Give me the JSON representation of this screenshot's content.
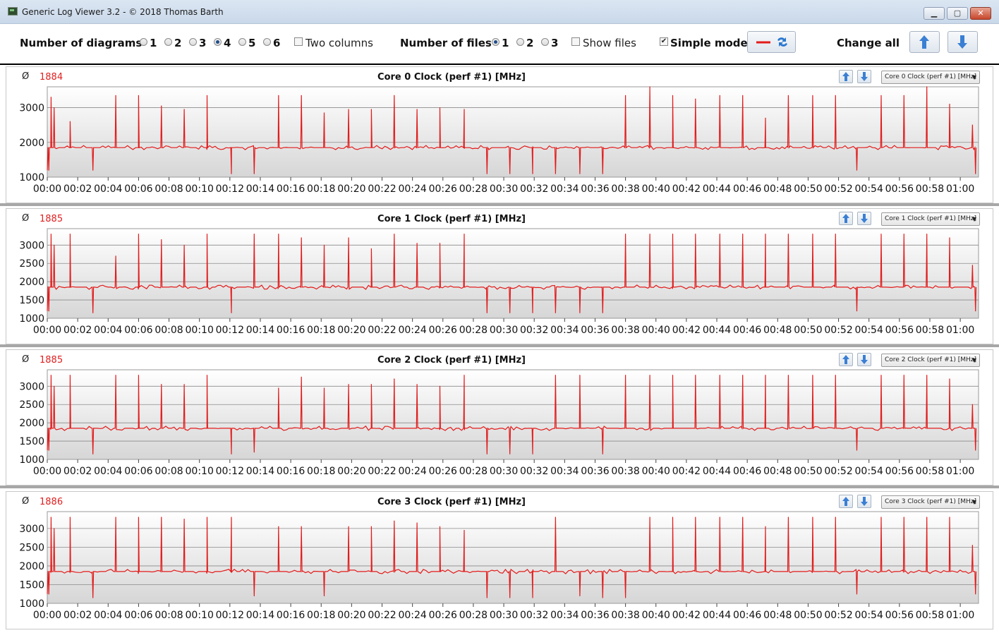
{
  "window": {
    "title": "Generic Log Viewer 3.2 - © 2018 Thomas Barth",
    "minimize_icon": "minimize-icon",
    "maximize_icon": "maximize-icon",
    "close_icon": "close-icon"
  },
  "toolbar": {
    "diagrams_label": "Number of diagrams",
    "diagram_options": [
      "1",
      "2",
      "3",
      "4",
      "5",
      "6"
    ],
    "diagram_selected": "4",
    "two_columns_label": "Two columns",
    "two_columns_checked": false,
    "files_label": "Number of files",
    "file_options": [
      "1",
      "2",
      "3"
    ],
    "file_selected": "1",
    "show_files_label": "Show files",
    "show_files_checked": false,
    "simple_mode_label": "Simple mode",
    "simple_mode_checked": true,
    "change_all_label": "Change all",
    "accent_color": "#e31b1b",
    "arrow_color": "#3b7fd4"
  },
  "panels": [
    {
      "avg_symbol": "Ø",
      "avg": "1884",
      "title": "Core 0 Clock (perf #1) [MHz]",
      "select": "Core 0 Clock (perf #1) [MHz]"
    },
    {
      "avg_symbol": "Ø",
      "avg": "1885",
      "title": "Core 1 Clock (perf #1) [MHz]",
      "select": "Core 1 Clock (perf #1) [MHz]"
    },
    {
      "avg_symbol": "Ø",
      "avg": "1885",
      "title": "Core 2 Clock (perf #1) [MHz]",
      "select": "Core 2 Clock (perf #1) [MHz]"
    },
    {
      "avg_symbol": "Ø",
      "avg": "1886",
      "title": "Core 3 Clock (perf #1) [MHz]",
      "select": "Core 3 Clock (perf #1) [MHz]"
    }
  ],
  "chart_data": [
    {
      "type": "line",
      "title": "Core 0 Clock (perf #1) [MHz]",
      "x_ticks": [
        "00:00",
        "00:02",
        "00:04",
        "00:06",
        "00:08",
        "00:10",
        "00:12",
        "00:14",
        "00:16",
        "00:18",
        "00:20",
        "00:22",
        "00:24",
        "00:26",
        "00:28",
        "00:30",
        "00:32",
        "00:34",
        "00:36",
        "00:38",
        "00:40",
        "00:42",
        "00:44",
        "00:46",
        "00:48",
        "00:50",
        "00:52",
        "00:54",
        "00:56",
        "00:58",
        "01:00"
      ],
      "y_ticks": [
        1000,
        2000,
        3000
      ],
      "ylim": [
        1000,
        3600
      ],
      "xlim": [
        0,
        61.2
      ],
      "line_color": "#e31b1b",
      "grid": true,
      "baseline": 1850,
      "spikes": [
        [
          0.1,
          1200
        ],
        [
          0.25,
          3300
        ],
        [
          0.45,
          3000
        ],
        [
          1.5,
          2600
        ],
        [
          3.0,
          1200
        ],
        [
          4.5,
          3350
        ],
        [
          6.0,
          3350
        ],
        [
          7.5,
          3050
        ],
        [
          9.0,
          2950
        ],
        [
          10.5,
          3350
        ],
        [
          12.1,
          1100
        ],
        [
          13.6,
          1100
        ],
        [
          15.2,
          3350
        ],
        [
          16.7,
          3350
        ],
        [
          18.2,
          2850
        ],
        [
          19.8,
          2950
        ],
        [
          21.3,
          2950
        ],
        [
          22.8,
          3350
        ],
        [
          24.3,
          2950
        ],
        [
          25.8,
          3000
        ],
        [
          27.4,
          2950
        ],
        [
          28.9,
          1100
        ],
        [
          30.4,
          1100
        ],
        [
          31.9,
          1100
        ],
        [
          33.4,
          1100
        ],
        [
          35.0,
          1100
        ],
        [
          36.5,
          1100
        ],
        [
          38.0,
          3350
        ],
        [
          39.6,
          3650
        ],
        [
          41.1,
          3350
        ],
        [
          42.6,
          3250
        ],
        [
          44.2,
          3350
        ],
        [
          45.7,
          3350
        ],
        [
          47.2,
          2700
        ],
        [
          48.7,
          3350
        ],
        [
          50.3,
          3350
        ],
        [
          51.8,
          3350
        ],
        [
          53.2,
          1200
        ],
        [
          54.8,
          3350
        ],
        [
          56.3,
          3350
        ],
        [
          57.8,
          3650
        ],
        [
          59.3,
          3100
        ],
        [
          60.8,
          2500
        ],
        [
          61.0,
          1100
        ]
      ]
    },
    {
      "type": "line",
      "title": "Core 1 Clock (perf #1) [MHz]",
      "x_ticks": [
        "00:00",
        "00:02",
        "00:04",
        "00:06",
        "00:08",
        "00:10",
        "00:12",
        "00:14",
        "00:16",
        "00:18",
        "00:20",
        "00:22",
        "00:24",
        "00:26",
        "00:28",
        "00:30",
        "00:32",
        "00:34",
        "00:36",
        "00:38",
        "00:40",
        "00:42",
        "00:44",
        "00:46",
        "00:48",
        "00:50",
        "00:52",
        "00:54",
        "00:56",
        "00:58",
        "01:00"
      ],
      "y_ticks": [
        1000,
        1500,
        2000,
        2500,
        3000
      ],
      "ylim": [
        1000,
        3450
      ],
      "xlim": [
        0,
        61.2
      ],
      "line_color": "#e31b1b",
      "grid": true,
      "baseline": 1850,
      "spikes": [
        [
          0.1,
          1200
        ],
        [
          0.25,
          3300
        ],
        [
          0.45,
          3000
        ],
        [
          1.5,
          3300
        ],
        [
          3.0,
          1150
        ],
        [
          4.5,
          2700
        ],
        [
          6.0,
          3300
        ],
        [
          7.5,
          3150
        ],
        [
          9.0,
          3000
        ],
        [
          10.5,
          3300
        ],
        [
          12.1,
          1150
        ],
        [
          13.6,
          3300
        ],
        [
          15.2,
          3300
        ],
        [
          16.7,
          3200
        ],
        [
          18.2,
          3000
        ],
        [
          19.8,
          3200
        ],
        [
          21.3,
          2900
        ],
        [
          22.8,
          3300
        ],
        [
          24.3,
          3050
        ],
        [
          25.8,
          3050
        ],
        [
          27.4,
          3300
        ],
        [
          28.9,
          1150
        ],
        [
          30.4,
          1150
        ],
        [
          31.9,
          1150
        ],
        [
          33.4,
          1150
        ],
        [
          35.0,
          1150
        ],
        [
          36.5,
          1150
        ],
        [
          38.0,
          3300
        ],
        [
          39.6,
          3300
        ],
        [
          41.1,
          3300
        ],
        [
          42.6,
          3300
        ],
        [
          44.2,
          3300
        ],
        [
          45.7,
          3300
        ],
        [
          47.2,
          3300
        ],
        [
          48.7,
          3300
        ],
        [
          50.3,
          3300
        ],
        [
          51.8,
          3300
        ],
        [
          53.2,
          1200
        ],
        [
          54.8,
          3300
        ],
        [
          56.3,
          3300
        ],
        [
          57.8,
          3300
        ],
        [
          59.3,
          3200
        ],
        [
          60.8,
          2450
        ],
        [
          61.0,
          1200
        ]
      ]
    },
    {
      "type": "line",
      "title": "Core 2 Clock (perf #1) [MHz]",
      "x_ticks": [
        "00:00",
        "00:02",
        "00:04",
        "00:06",
        "00:08",
        "00:10",
        "00:12",
        "00:14",
        "00:16",
        "00:18",
        "00:20",
        "00:22",
        "00:24",
        "00:26",
        "00:28",
        "00:30",
        "00:32",
        "00:34",
        "00:36",
        "00:38",
        "00:40",
        "00:42",
        "00:44",
        "00:46",
        "00:48",
        "00:50",
        "00:52",
        "00:54",
        "00:56",
        "00:58",
        "01:00"
      ],
      "y_ticks": [
        1000,
        1500,
        2000,
        2500,
        3000
      ],
      "ylim": [
        1000,
        3450
      ],
      "xlim": [
        0,
        61.2
      ],
      "line_color": "#e31b1b",
      "grid": true,
      "baseline": 1850,
      "spikes": [
        [
          0.1,
          1250
        ],
        [
          0.25,
          3300
        ],
        [
          0.45,
          3000
        ],
        [
          1.5,
          3300
        ],
        [
          3.0,
          1150
        ],
        [
          4.5,
          3300
        ],
        [
          6.0,
          3300
        ],
        [
          7.5,
          3050
        ],
        [
          9.0,
          3050
        ],
        [
          10.5,
          3300
        ],
        [
          12.1,
          1150
        ],
        [
          13.6,
          1200
        ],
        [
          15.2,
          2950
        ],
        [
          16.7,
          3250
        ],
        [
          18.2,
          2950
        ],
        [
          19.8,
          3050
        ],
        [
          21.3,
          3050
        ],
        [
          22.8,
          3200
        ],
        [
          24.3,
          3050
        ],
        [
          25.8,
          3000
        ],
        [
          27.4,
          3300
        ],
        [
          28.9,
          1150
        ],
        [
          30.4,
          1150
        ],
        [
          31.9,
          1150
        ],
        [
          33.4,
          3300
        ],
        [
          35.0,
          3300
        ],
        [
          36.5,
          1150
        ],
        [
          38.0,
          3300
        ],
        [
          39.6,
          3300
        ],
        [
          41.1,
          3300
        ],
        [
          42.6,
          3300
        ],
        [
          44.2,
          3300
        ],
        [
          45.7,
          3300
        ],
        [
          47.2,
          3300
        ],
        [
          48.7,
          3300
        ],
        [
          50.3,
          3300
        ],
        [
          51.8,
          3300
        ],
        [
          53.2,
          1250
        ],
        [
          54.8,
          3300
        ],
        [
          56.3,
          3300
        ],
        [
          57.8,
          3300
        ],
        [
          59.3,
          3200
        ],
        [
          60.8,
          2500
        ],
        [
          61.0,
          1250
        ]
      ]
    },
    {
      "type": "line",
      "title": "Core 3 Clock (perf #1) [MHz]",
      "x_ticks": [
        "00:00",
        "00:02",
        "00:04",
        "00:06",
        "00:08",
        "00:10",
        "00:12",
        "00:14",
        "00:16",
        "00:18",
        "00:20",
        "00:22",
        "00:24",
        "00:26",
        "00:28",
        "00:30",
        "00:32",
        "00:34",
        "00:36",
        "00:38",
        "00:40",
        "00:42",
        "00:44",
        "00:46",
        "00:48",
        "00:50",
        "00:52",
        "00:54",
        "00:56",
        "00:58",
        "01:00"
      ],
      "y_ticks": [
        1000,
        1500,
        2000,
        2500,
        3000
      ],
      "ylim": [
        1000,
        3450
      ],
      "xlim": [
        0,
        61.2
      ],
      "line_color": "#e31b1b",
      "grid": true,
      "baseline": 1850,
      "spikes": [
        [
          0.1,
          1250
        ],
        [
          0.25,
          3300
        ],
        [
          0.45,
          3000
        ],
        [
          1.5,
          3300
        ],
        [
          3.0,
          1150
        ],
        [
          4.5,
          3300
        ],
        [
          6.0,
          3300
        ],
        [
          7.5,
          3300
        ],
        [
          9.0,
          3250
        ],
        [
          10.5,
          3300
        ],
        [
          12.1,
          3300
        ],
        [
          13.6,
          1200
        ],
        [
          15.2,
          3050
        ],
        [
          16.7,
          3050
        ],
        [
          18.2,
          1200
        ],
        [
          19.8,
          3050
        ],
        [
          21.3,
          3050
        ],
        [
          22.8,
          3200
        ],
        [
          24.3,
          3150
        ],
        [
          25.8,
          3050
        ],
        [
          27.4,
          2950
        ],
        [
          28.9,
          1150
        ],
        [
          30.4,
          1150
        ],
        [
          31.9,
          1150
        ],
        [
          33.4,
          3300
        ],
        [
          35.0,
          1200
        ],
        [
          36.5,
          1150
        ],
        [
          38.0,
          1150
        ],
        [
          39.6,
          3300
        ],
        [
          41.1,
          3300
        ],
        [
          42.6,
          3300
        ],
        [
          44.2,
          3300
        ],
        [
          45.7,
          3300
        ],
        [
          47.2,
          3050
        ],
        [
          48.7,
          3300
        ],
        [
          50.3,
          3300
        ],
        [
          51.8,
          3300
        ],
        [
          53.2,
          1250
        ],
        [
          54.8,
          3300
        ],
        [
          56.3,
          3300
        ],
        [
          57.8,
          3300
        ],
        [
          59.3,
          3300
        ],
        [
          60.8,
          2550
        ],
        [
          61.0,
          1250
        ]
      ]
    }
  ]
}
